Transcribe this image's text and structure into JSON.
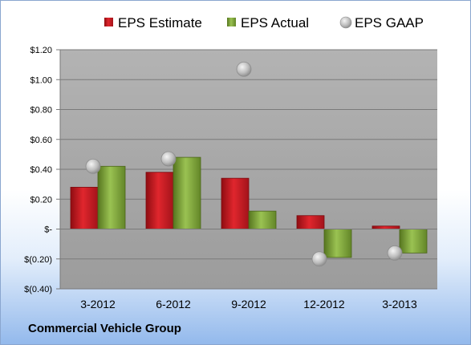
{
  "chart_data": {
    "type": "bar",
    "categories": [
      "3-2012",
      "6-2012",
      "9-2012",
      "12-2012",
      "3-2013"
    ],
    "series": [
      {
        "name": "EPS Estimate",
        "kind": "bar",
        "color": "#c0141b",
        "values": [
          0.28,
          0.38,
          0.34,
          0.09,
          0.02
        ]
      },
      {
        "name": "EPS Actual",
        "kind": "bar",
        "color": "#7aa03a",
        "values": [
          0.42,
          0.48,
          0.12,
          -0.19,
          -0.16
        ]
      },
      {
        "name": "EPS GAAP",
        "kind": "marker",
        "color": "#b8b8b8",
        "values": [
          0.42,
          0.47,
          1.07,
          -0.2,
          -0.16
        ]
      }
    ],
    "ylim": [
      -0.4,
      1.2
    ],
    "y_ticks": [
      {
        "value": 1.2,
        "label": "$1.20"
      },
      {
        "value": 1.0,
        "label": "$1.00"
      },
      {
        "value": 0.8,
        "label": "$0.80"
      },
      {
        "value": 0.6,
        "label": "$0.60"
      },
      {
        "value": 0.4,
        "label": "$0.40"
      },
      {
        "value": 0.2,
        "label": "$0.20"
      },
      {
        "value": 0.0,
        "label": "$-"
      },
      {
        "value": -0.2,
        "label": "$(0.20)"
      },
      {
        "value": -0.4,
        "label": "$(0.40)"
      }
    ],
    "grid": true,
    "legend_position": "top",
    "plot_background": "#a6a6a6"
  },
  "footer": {
    "company": "Commercial Vehicle Group"
  }
}
